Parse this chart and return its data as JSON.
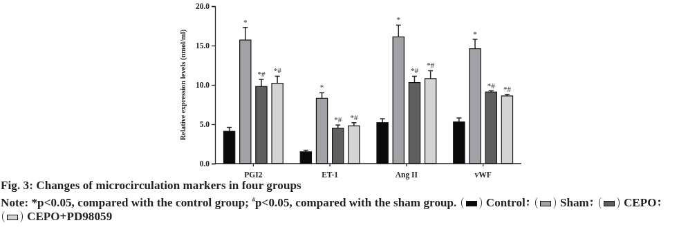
{
  "chart_data": {
    "type": "bar",
    "title": "Fig. 3: Changes of microcirculation markers in four groups",
    "ylabel": "Relative expression levels (nmol/ml)",
    "annotations": [
      "Note: *p<0.05, compared with the control group; $^{#}$p<0.05, compared with the sham group."
    ],
    "categories": [
      "PGI2",
      "ET-1",
      "Ang II",
      "vWF"
    ],
    "series": [
      {
        "name": "Control",
        "color": "#0a0a0a",
        "values": [
          4.1,
          1.5,
          5.2,
          5.3
        ],
        "errors": [
          0.5,
          0.2,
          0.5,
          0.5
        ]
      },
      {
        "name": "Sham",
        "color": "#a0a2a6",
        "values": [
          15.7,
          8.3,
          16.1,
          14.6
        ],
        "errors": [
          1.6,
          0.7,
          1.5,
          1.2
        ],
        "value_labels": [
          "*",
          "*",
          "*",
          "*"
        ]
      },
      {
        "name": "CEPO",
        "color": "#5f5f5f",
        "values": [
          9.8,
          4.5,
          10.3,
          9.1
        ],
        "errors": [
          0.9,
          0.4,
          0.8,
          0.15
        ],
        "value_labels": [
          "*#",
          "*#",
          "*#",
          "*#"
        ]
      },
      {
        "name": "CEPO+PD98059",
        "color": "#d4d4d4",
        "values": [
          10.2,
          4.8,
          10.8,
          8.6
        ],
        "errors": [
          0.9,
          0.4,
          1.0,
          0.2
        ],
        "value_labels": [
          "*#",
          "*#",
          "*#",
          "*#"
        ]
      }
    ],
    "ylim": [
      0,
      20
    ],
    "yticks": [
      {
        "value": 0,
        "label": "0.0"
      },
      {
        "value": 5,
        "label": "5.0"
      },
      {
        "value": 10,
        "label": "10.0"
      },
      {
        "value": 15,
        "label": "15.0"
      },
      {
        "value": 20,
        "label": "20.0"
      }
    ],
    "legend": "bottom"
  }
}
